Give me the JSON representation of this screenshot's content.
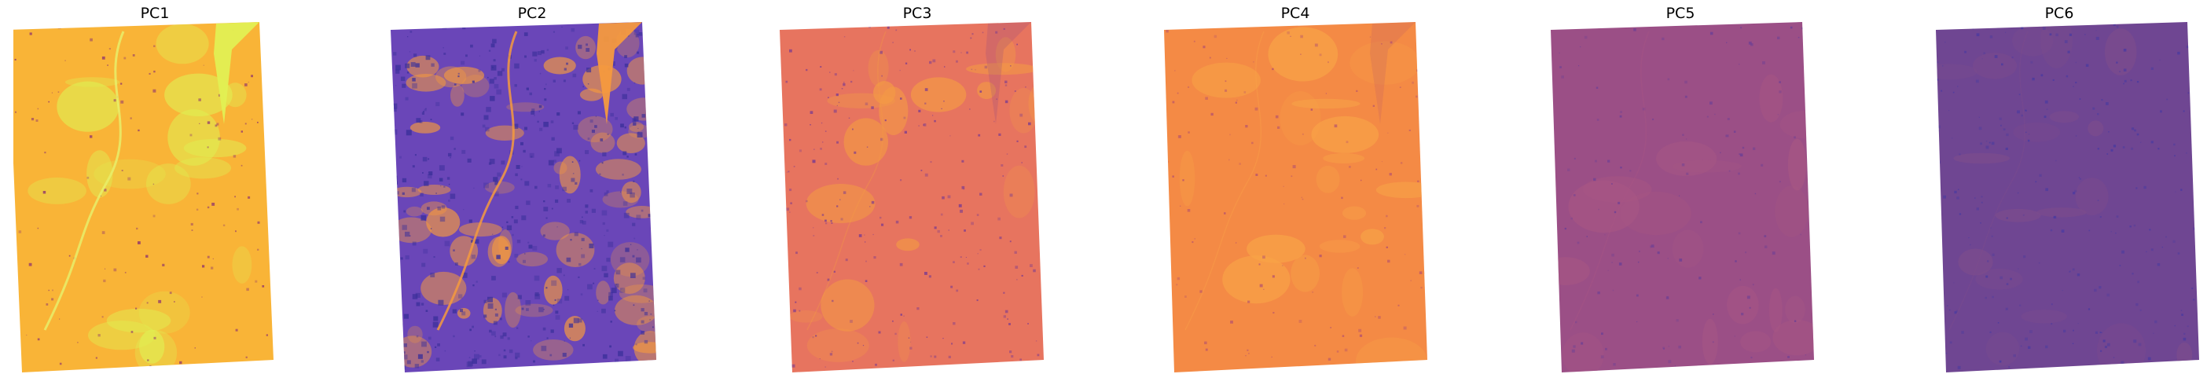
{
  "figure": {
    "panels": [
      {
        "title": "PC1",
        "base_color": "#f9b437",
        "accent_color": "#e0ef52",
        "dark_color": "#8a2f6f",
        "texture": "low"
      },
      {
        "title": "PC2",
        "base_color": "#6a46b8",
        "accent_color": "#f59a3e",
        "dark_color": "#3a2f9a",
        "texture": "high"
      },
      {
        "title": "PC3",
        "base_color": "#e7745f",
        "accent_color": "#f39a45",
        "dark_color": "#7a3a8f",
        "texture": "medium"
      },
      {
        "title": "PC4",
        "base_color": "#f48a45",
        "accent_color": "#f8a447",
        "dark_color": "#b4506e",
        "texture": "low"
      },
      {
        "title": "PC5",
        "base_color": "#9b4f86",
        "accent_color": "#a85783",
        "dark_color": "#6a3f96",
        "texture": "low"
      },
      {
        "title": "PC6",
        "base_color": "#6f4692",
        "accent_color": "#7d4c8c",
        "dark_color": "#4a3aa0",
        "texture": "medium"
      }
    ]
  }
}
